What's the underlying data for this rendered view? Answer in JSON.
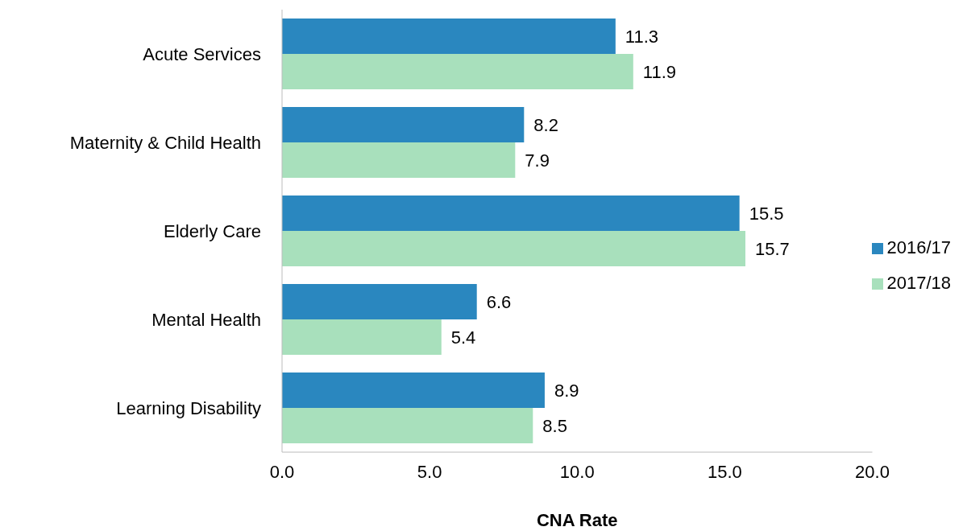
{
  "chart_data": {
    "type": "bar",
    "orientation": "horizontal",
    "xlabel": "CNA Rate",
    "categories": [
      "Acute Services",
      "Maternity & Child Health",
      "Elderly Care",
      "Mental Health",
      "Learning Disability"
    ],
    "series": [
      {
        "name": "2016/17",
        "color": "#2a87bf",
        "values": [
          11.3,
          8.2,
          15.5,
          6.6,
          8.9
        ]
      },
      {
        "name": "2017/18",
        "color": "#a8e0bc",
        "values": [
          11.9,
          7.9,
          15.7,
          5.4,
          8.5
        ]
      }
    ],
    "xlim": [
      0,
      20
    ],
    "xticks": [
      {
        "value": 0,
        "label": "0.0"
      },
      {
        "value": 5,
        "label": "5.0"
      },
      {
        "value": 10,
        "label": "10.0"
      },
      {
        "value": 15,
        "label": "15.0"
      },
      {
        "value": 20,
        "label": "20.0"
      }
    ],
    "data_labels": true,
    "grid": false,
    "legend": "right"
  }
}
